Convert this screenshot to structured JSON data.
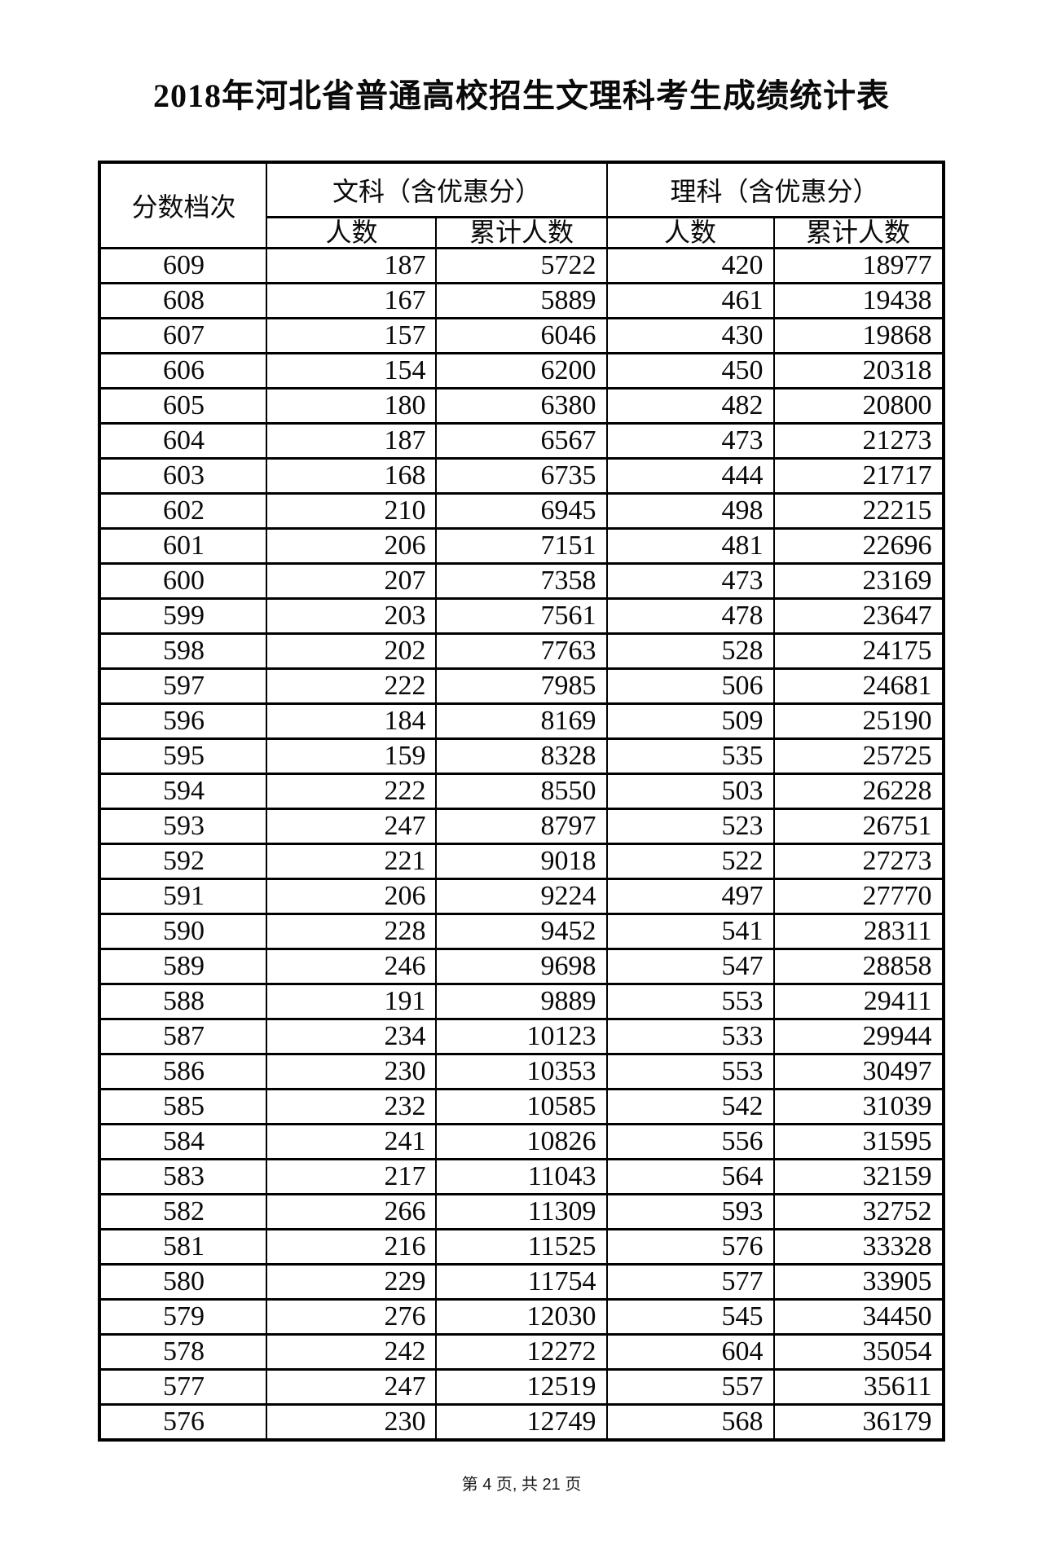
{
  "title": "2018年河北省普通高校招生文理科考生成绩统计表",
  "table": {
    "score_header": "分数档次",
    "liberal_group_header": "文科（含优惠分）",
    "science_group_header": "理科（含优惠分）",
    "count_header": "人数",
    "cumulative_header": "累计人数",
    "rows": [
      {
        "score": "609",
        "lib_count": "187",
        "lib_cum": "5722",
        "sci_count": "420",
        "sci_cum": "18977"
      },
      {
        "score": "608",
        "lib_count": "167",
        "lib_cum": "5889",
        "sci_count": "461",
        "sci_cum": "19438"
      },
      {
        "score": "607",
        "lib_count": "157",
        "lib_cum": "6046",
        "sci_count": "430",
        "sci_cum": "19868"
      },
      {
        "score": "606",
        "lib_count": "154",
        "lib_cum": "6200",
        "sci_count": "450",
        "sci_cum": "20318"
      },
      {
        "score": "605",
        "lib_count": "180",
        "lib_cum": "6380",
        "sci_count": "482",
        "sci_cum": "20800"
      },
      {
        "score": "604",
        "lib_count": "187",
        "lib_cum": "6567",
        "sci_count": "473",
        "sci_cum": "21273"
      },
      {
        "score": "603",
        "lib_count": "168",
        "lib_cum": "6735",
        "sci_count": "444",
        "sci_cum": "21717"
      },
      {
        "score": "602",
        "lib_count": "210",
        "lib_cum": "6945",
        "sci_count": "498",
        "sci_cum": "22215"
      },
      {
        "score": "601",
        "lib_count": "206",
        "lib_cum": "7151",
        "sci_count": "481",
        "sci_cum": "22696"
      },
      {
        "score": "600",
        "lib_count": "207",
        "lib_cum": "7358",
        "sci_count": "473",
        "sci_cum": "23169"
      },
      {
        "score": "599",
        "lib_count": "203",
        "lib_cum": "7561",
        "sci_count": "478",
        "sci_cum": "23647"
      },
      {
        "score": "598",
        "lib_count": "202",
        "lib_cum": "7763",
        "sci_count": "528",
        "sci_cum": "24175"
      },
      {
        "score": "597",
        "lib_count": "222",
        "lib_cum": "7985",
        "sci_count": "506",
        "sci_cum": "24681"
      },
      {
        "score": "596",
        "lib_count": "184",
        "lib_cum": "8169",
        "sci_count": "509",
        "sci_cum": "25190"
      },
      {
        "score": "595",
        "lib_count": "159",
        "lib_cum": "8328",
        "sci_count": "535",
        "sci_cum": "25725"
      },
      {
        "score": "594",
        "lib_count": "222",
        "lib_cum": "8550",
        "sci_count": "503",
        "sci_cum": "26228"
      },
      {
        "score": "593",
        "lib_count": "247",
        "lib_cum": "8797",
        "sci_count": "523",
        "sci_cum": "26751"
      },
      {
        "score": "592",
        "lib_count": "221",
        "lib_cum": "9018",
        "sci_count": "522",
        "sci_cum": "27273"
      },
      {
        "score": "591",
        "lib_count": "206",
        "lib_cum": "9224",
        "sci_count": "497",
        "sci_cum": "27770"
      },
      {
        "score": "590",
        "lib_count": "228",
        "lib_cum": "9452",
        "sci_count": "541",
        "sci_cum": "28311"
      },
      {
        "score": "589",
        "lib_count": "246",
        "lib_cum": "9698",
        "sci_count": "547",
        "sci_cum": "28858"
      },
      {
        "score": "588",
        "lib_count": "191",
        "lib_cum": "9889",
        "sci_count": "553",
        "sci_cum": "29411"
      },
      {
        "score": "587",
        "lib_count": "234",
        "lib_cum": "10123",
        "sci_count": "533",
        "sci_cum": "29944"
      },
      {
        "score": "586",
        "lib_count": "230",
        "lib_cum": "10353",
        "sci_count": "553",
        "sci_cum": "30497"
      },
      {
        "score": "585",
        "lib_count": "232",
        "lib_cum": "10585",
        "sci_count": "542",
        "sci_cum": "31039"
      },
      {
        "score": "584",
        "lib_count": "241",
        "lib_cum": "10826",
        "sci_count": "556",
        "sci_cum": "31595"
      },
      {
        "score": "583",
        "lib_count": "217",
        "lib_cum": "11043",
        "sci_count": "564",
        "sci_cum": "32159"
      },
      {
        "score": "582",
        "lib_count": "266",
        "lib_cum": "11309",
        "sci_count": "593",
        "sci_cum": "32752"
      },
      {
        "score": "581",
        "lib_count": "216",
        "lib_cum": "11525",
        "sci_count": "576",
        "sci_cum": "33328"
      },
      {
        "score": "580",
        "lib_count": "229",
        "lib_cum": "11754",
        "sci_count": "577",
        "sci_cum": "33905"
      },
      {
        "score": "579",
        "lib_count": "276",
        "lib_cum": "12030",
        "sci_count": "545",
        "sci_cum": "34450"
      },
      {
        "score": "578",
        "lib_count": "242",
        "lib_cum": "12272",
        "sci_count": "604",
        "sci_cum": "35054"
      },
      {
        "score": "577",
        "lib_count": "247",
        "lib_cum": "12519",
        "sci_count": "557",
        "sci_cum": "35611"
      },
      {
        "score": "576",
        "lib_count": "230",
        "lib_cum": "12749",
        "sci_count": "568",
        "sci_cum": "36179"
      }
    ]
  },
  "footer": "第 4 页, 共 21 页"
}
